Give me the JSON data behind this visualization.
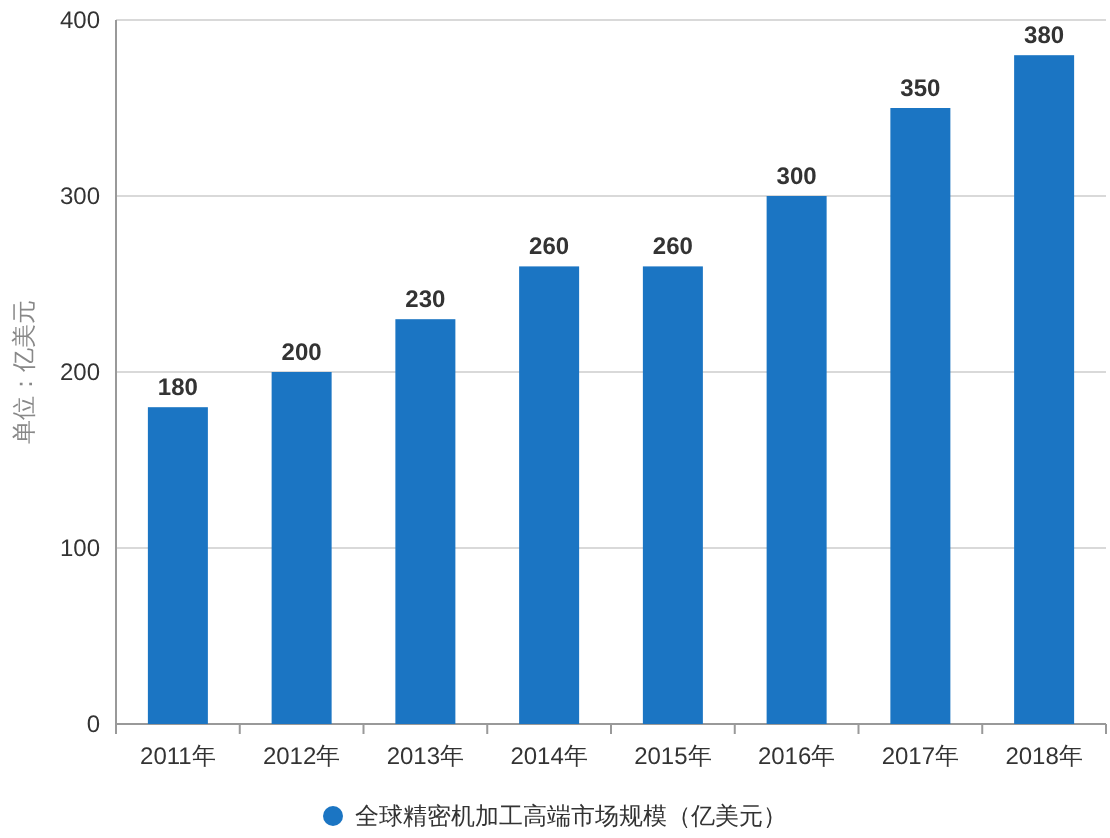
{
  "chart_data": {
    "type": "bar",
    "ylabel": "单位：亿美元",
    "categories": [
      "2011年",
      "2012年",
      "2013年",
      "2014年",
      "2015年",
      "2016年",
      "2017年",
      "2018年"
    ],
    "series": [
      {
        "name": "全球精密机加工高端市场规模（亿美元）",
        "color": "#1b75c3",
        "values": [
          180,
          200,
          230,
          260,
          260,
          300,
          350,
          380
        ]
      }
    ],
    "ylim": [
      0,
      400
    ],
    "yticks": [
      0,
      100,
      200,
      300,
      400
    ],
    "grid": "y",
    "legend": "bottom",
    "data_labels": true
  }
}
